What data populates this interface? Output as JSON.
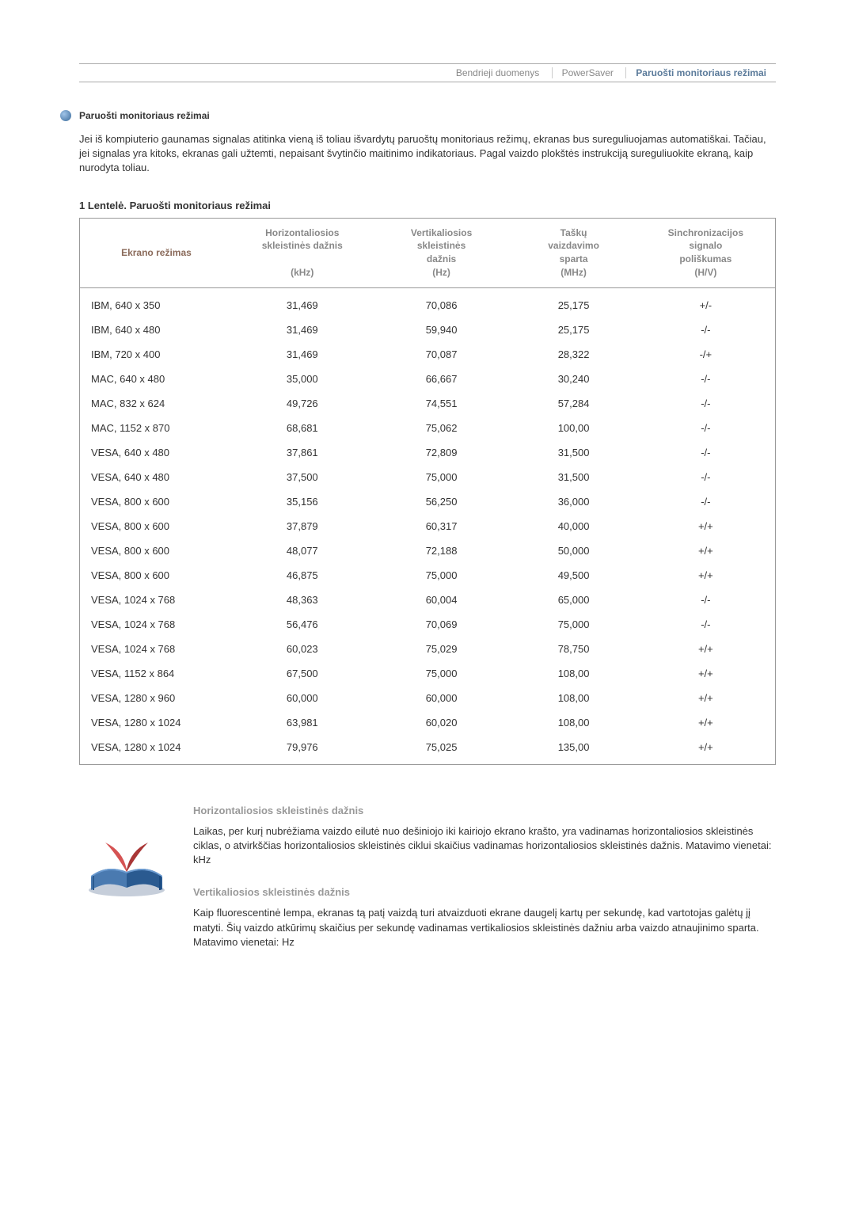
{
  "nav": {
    "items": [
      "Bendrieji duomenys",
      "PowerSaver",
      "Paruošti monitoriaus režimai"
    ],
    "active_index": 2
  },
  "section": {
    "title": "Paruošti monitoriaus režimai",
    "intro": "Jei iš kompiuterio gaunamas signalas atitinka vieną iš toliau išvardytų paruoštų monitoriaus režimų, ekranas bus sureguliuojamas automatiškai. Tačiau, jei signalas yra kitoks, ekranas gali užtemti, nepaisant švytinčio maitinimo indikatoriaus. Pagal vaizdo plokštės instrukciją sureguliuokite ekraną, kaip nurodyta toliau."
  },
  "table": {
    "title": "1 Lentelė. Paruošti monitoriaus režimai",
    "columns": [
      "Ekrano režimas",
      "Horizontaliosios skleistinės dažnis\n(kHz)",
      "Vertikaliosios skleistinės dažnis\n(Hz)",
      "Taškų vaizdavimo sparta\n(MHz)",
      "Sinchronizacijos signalo poliškumas\n(H/V)"
    ],
    "rows": [
      [
        "IBM, 640 x 350",
        "31,469",
        "70,086",
        "25,175",
        "+/-"
      ],
      [
        "IBM, 640 x 480",
        "31,469",
        "59,940",
        "25,175",
        "-/-"
      ],
      [
        "IBM, 720 x 400",
        "31,469",
        "70,087",
        "28,322",
        "-/+"
      ],
      [
        "MAC, 640 x 480",
        "35,000",
        "66,667",
        "30,240",
        "-/-"
      ],
      [
        "MAC, 832 x 624",
        "49,726",
        "74,551",
        "57,284",
        "-/-"
      ],
      [
        "MAC, 1152 x 870",
        "68,681",
        "75,062",
        "100,00",
        "-/-"
      ],
      [
        "VESA, 640 x 480",
        "37,861",
        "72,809",
        "31,500",
        "-/-"
      ],
      [
        "VESA, 640 x 480",
        "37,500",
        "75,000",
        "31,500",
        "-/-"
      ],
      [
        "VESA, 800 x 600",
        "35,156",
        "56,250",
        "36,000",
        "-/-"
      ],
      [
        "VESA, 800 x 600",
        "37,879",
        "60,317",
        "40,000",
        "+/+"
      ],
      [
        "VESA, 800 x 600",
        "48,077",
        "72,188",
        "50,000",
        "+/+"
      ],
      [
        "VESA, 800 x 600",
        "46,875",
        "75,000",
        "49,500",
        "+/+"
      ],
      [
        "VESA, 1024 x 768",
        "48,363",
        "60,004",
        "65,000",
        "-/-"
      ],
      [
        "VESA, 1024 x 768",
        "56,476",
        "70,069",
        "75,000",
        "-/-"
      ],
      [
        "VESA, 1024 x 768",
        "60,023",
        "75,029",
        "78,750",
        "+/+"
      ],
      [
        "VESA, 1152 x 864",
        "67,500",
        "75,000",
        "108,00",
        "+/+"
      ],
      [
        "VESA, 1280 x 960",
        "60,000",
        "60,000",
        "108,00",
        "+/+"
      ],
      [
        "VESA, 1280 x 1024",
        "63,981",
        "60,020",
        "108,00",
        "+/+"
      ],
      [
        "VESA, 1280 x 1024",
        "79,976",
        "75,025",
        "135,00",
        "+/+"
      ]
    ],
    "col_widths": [
      "22%",
      "20%",
      "20%",
      "18%",
      "20%"
    ]
  },
  "definitions": [
    {
      "title": "Horizontaliosios skleistinės dažnis",
      "body": "Laikas, per kurį nubrėžiama vaizdo eilutė nuo dešiniojo iki kairiojo ekrano krašto, yra vadinamas horizontaliosios skleistinės ciklas, o atvirkščias horizontaliosios skleistinės ciklui skaičius vadinamas horizontaliosios skleistinės dažnis. Matavimo vienetai: kHz"
    },
    {
      "title": "Vertikaliosios skleistinės dažnis",
      "body": "Kaip fluorescentinė lempa, ekranas tą patį vaizdą turi atvaizduoti ekrane daugelį kartų per sekundę, kad vartotojas galėtų jį matyti. Šių vaizdo atkūrimų skaičius per sekundę vadinamas vertikaliosios skleistinės dažniu arba vaizdo atnaujinimo sparta. Matavimo vienetai: Hz"
    }
  ],
  "colors": {
    "header_gray": "#888888",
    "mode_label": "#8a6a5a",
    "border": "#999999",
    "text": "#333333"
  }
}
